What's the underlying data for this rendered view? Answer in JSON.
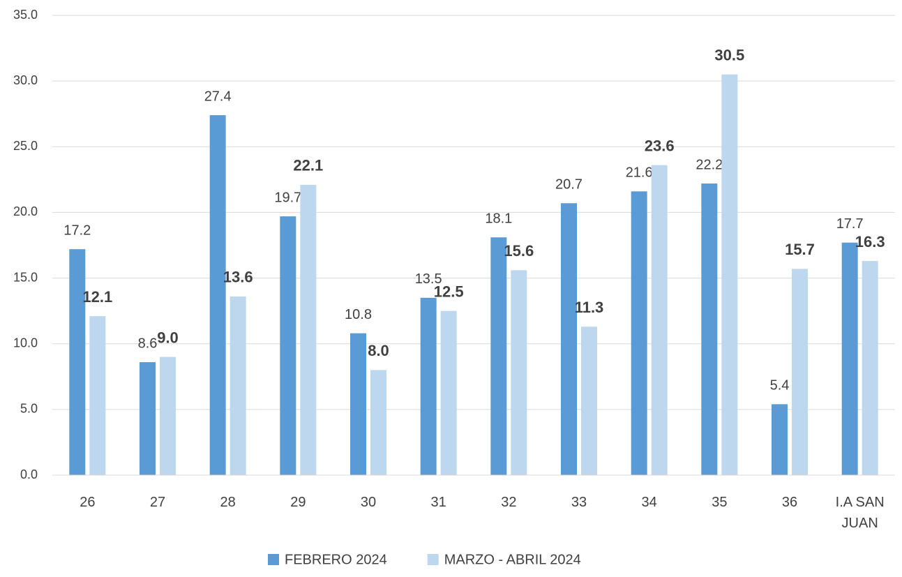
{
  "chart_data": {
    "type": "bar",
    "categories": [
      "26",
      "27",
      "28",
      "29",
      "30",
      "31",
      "32",
      "33",
      "34",
      "35",
      "36",
      "I.A SAN JUAN"
    ],
    "series": [
      {
        "name": "FEBRERO 2024",
        "color": "#5b9bd5",
        "values": [
          17.2,
          8.6,
          27.4,
          19.7,
          10.8,
          13.5,
          18.1,
          20.7,
          21.6,
          22.2,
          5.4,
          17.7
        ],
        "value_labels": [
          "17.2",
          "8.6",
          "27.4",
          "19.7",
          "10.8",
          "13.5",
          "18.1",
          "20.7",
          "21.6",
          "22.2",
          "5.4",
          "17.7"
        ]
      },
      {
        "name": "MARZO - ABRIL 2024",
        "color": "#bdd7ee",
        "values": [
          12.1,
          9,
          13.6,
          22.1,
          8,
          12.5,
          15.6,
          11.3,
          23.6,
          30.5,
          15.7,
          16.3
        ],
        "value_labels": [
          "12.1",
          "9.0",
          "13.6",
          "22.1",
          "8.0",
          "12.5",
          "15.6",
          "11.3",
          "23.6",
          "30.5",
          "15.7",
          "16.3"
        ]
      }
    ],
    "ylim": [
      0,
      35
    ],
    "yticks": [
      {
        "value": 0,
        "label": "0.0"
      },
      {
        "value": 5,
        "label": "5.0"
      },
      {
        "value": 10,
        "label": "10.0"
      },
      {
        "value": 15,
        "label": "15.0"
      },
      {
        "value": 20,
        "label": "20.0"
      },
      {
        "value": 25,
        "label": "25.0"
      },
      {
        "value": 30,
        "label": "30.0"
      },
      {
        "value": 35,
        "label": "35.0"
      }
    ],
    "grid": true,
    "legend": "bottom"
  }
}
